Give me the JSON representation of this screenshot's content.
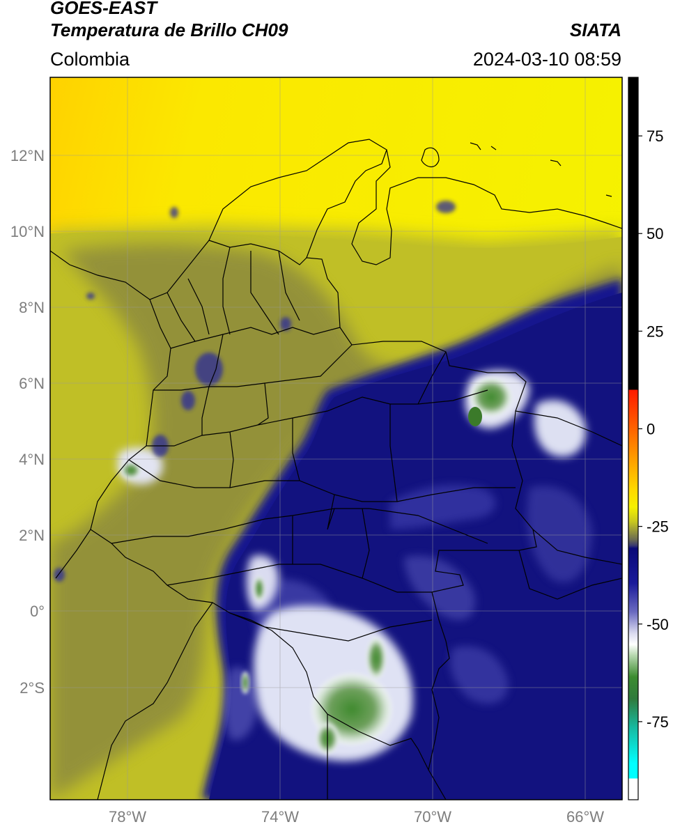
{
  "header": {
    "satellite": "GOES-EAST",
    "product": "Temperatura de Brillo CH09",
    "region": "Colombia",
    "agency": "SIATA",
    "datetime": "2024-03-10 08:59"
  },
  "map": {
    "lon_range": [
      -80,
      -65.1
    ],
    "lat_range": [
      -5.1,
      13.8
    ],
    "lat_ticks": [
      {
        "value": 12,
        "label": "12°N"
      },
      {
        "value": 10,
        "label": "10°N"
      },
      {
        "value": 8,
        "label": "8°N"
      },
      {
        "value": 6,
        "label": "6°N"
      },
      {
        "value": 4,
        "label": "4°N"
      },
      {
        "value": 2,
        "label": "2°N"
      },
      {
        "value": 0,
        "label": "0°"
      },
      {
        "value": -2,
        "label": "2°S"
      }
    ],
    "lon_ticks": [
      {
        "value": -78,
        "label": "78°W"
      },
      {
        "value": -74,
        "label": "74°W"
      },
      {
        "value": -70,
        "label": "70°W"
      },
      {
        "value": -66,
        "label": "66°W"
      }
    ],
    "grid": true
  },
  "colorbar": {
    "range": [
      -95,
      90
    ],
    "ticks": [
      75,
      50,
      25,
      0,
      -25,
      -50,
      -75
    ],
    "colors": {
      "black": "#000000",
      "red": "#ff1a00",
      "orange": "#ff9a00",
      "yellow": "#ffff00",
      "olive": "#c8c81e",
      "gray": "#5a5a50",
      "navy": "#0a0a78",
      "white": "#ffffff",
      "green": "#3c8c30",
      "teal": "#17b9a0",
      "cyan": "#00ffff"
    }
  },
  "colors": {
    "yellow_bg": "#f3f000",
    "olive_bg": "#b8b828",
    "gray_olive": "#7d7a45",
    "navy_bg": "#14148c",
    "cloud_white": "#e8eaf5",
    "cloud_green": "#4a8a3c",
    "border": "#000000"
  }
}
